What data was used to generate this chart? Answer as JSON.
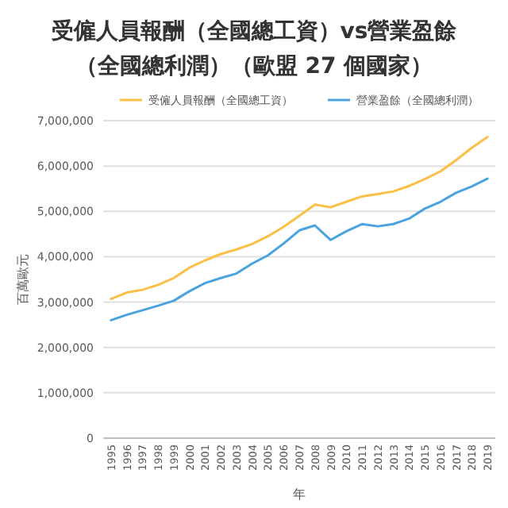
{
  "chart_data": {
    "type": "line",
    "title": "受僱人員報酬（全國總工資）vs營業盈餘（全國總利潤）（歐盟 27 個國家）",
    "xlabel": "年",
    "ylabel": "百萬歐元",
    "categories": [
      "1995",
      "1996",
      "1997",
      "1998",
      "1999",
      "2000",
      "2001",
      "2002",
      "2003",
      "2004",
      "2005",
      "2006",
      "2007",
      "2008",
      "2009",
      "2010",
      "2011",
      "2012",
      "2013",
      "2014",
      "2015",
      "2016",
      "2017",
      "2018",
      "2019"
    ],
    "series": [
      {
        "name": "受僱人員報酬（全國總工資）",
        "color": "#fbbf45",
        "values": [
          3070000,
          3210000,
          3270000,
          3380000,
          3530000,
          3760000,
          3920000,
          4060000,
          4160000,
          4280000,
          4450000,
          4660000,
          4900000,
          5150000,
          5090000,
          5210000,
          5330000,
          5380000,
          5440000,
          5560000,
          5710000,
          5880000,
          6130000,
          6400000,
          6640000
        ]
      },
      {
        "name": "營業盈餘（全國總利潤）",
        "color": "#4aa3df",
        "values": [
          2600000,
          2720000,
          2820000,
          2920000,
          3030000,
          3240000,
          3420000,
          3530000,
          3630000,
          3850000,
          4030000,
          4290000,
          4580000,
          4690000,
          4370000,
          4560000,
          4720000,
          4670000,
          4720000,
          4840000,
          5060000,
          5210000,
          5410000,
          5550000,
          5720000
        ]
      }
    ],
    "ylim": [
      0,
      7000000
    ],
    "yticks": [
      0,
      {
        "value": 1000000,
        "label": "1,000,000"
      },
      {
        "value": 2000000,
        "label": "2,000,000"
      },
      {
        "value": 3000000,
        "label": "3,000,000"
      },
      {
        "value": 4000000,
        "label": "4,000,000"
      },
      {
        "value": 5000000,
        "label": "5,000,000"
      },
      {
        "value": 6000000,
        "label": "6,000,000"
      },
      {
        "value": 7000000,
        "label": "7,000,000"
      }
    ],
    "grid": "y",
    "legend": "top",
    "marker": "none",
    "line_style": "solid"
  }
}
